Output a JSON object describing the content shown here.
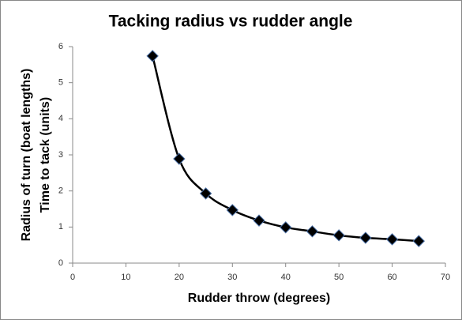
{
  "chart_data": {
    "type": "scatter",
    "title": "Tacking radius vs rudder angle",
    "x_label": "Rudder throw (degrees)",
    "y_label": [
      "Radius of turn (boat lengths)",
      "Time to tack (units)"
    ],
    "series": [
      {
        "color": "#000000",
        "x": [
          15,
          20,
          25,
          30,
          35,
          40,
          45,
          50,
          55,
          60,
          65
        ],
        "values": [
          5.74,
          2.89,
          1.93,
          1.47,
          1.18,
          0.99,
          0.88,
          0.77,
          0.7,
          0.66,
          0.61
        ]
      }
    ],
    "xlim": [
      0,
      70
    ],
    "xticks": [
      0,
      10,
      20,
      30,
      40,
      50,
      60,
      70
    ],
    "ylim": [
      0,
      6
    ],
    "yticks": [
      0,
      1,
      2,
      3,
      4,
      5,
      6
    ],
    "line": "smooth",
    "marker": "diamond",
    "grid": false
  }
}
